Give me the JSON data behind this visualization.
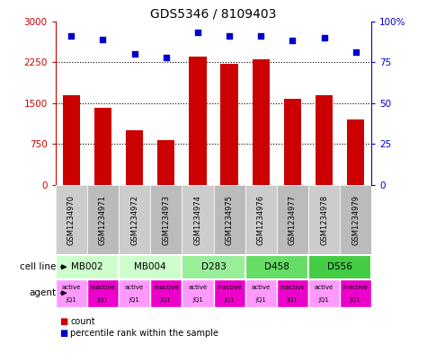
{
  "title": "GDS5346 / 8109403",
  "samples": [
    "GSM1234970",
    "GSM1234971",
    "GSM1234972",
    "GSM1234973",
    "GSM1234974",
    "GSM1234975",
    "GSM1234976",
    "GSM1234977",
    "GSM1234978",
    "GSM1234979"
  ],
  "counts": [
    1650,
    1420,
    1000,
    820,
    2350,
    2220,
    2300,
    1570,
    1650,
    1200
  ],
  "percentiles": [
    91,
    89,
    80,
    78,
    93,
    91,
    91,
    88,
    90,
    81
  ],
  "ylim_left": [
    0,
    3000
  ],
  "ylim_right": [
    0,
    100
  ],
  "yticks_left": [
    0,
    750,
    1500,
    2250,
    3000
  ],
  "yticks_right": [
    0,
    25,
    50,
    75,
    100
  ],
  "ytick_labels_left": [
    "0",
    "750",
    "1500",
    "2250",
    "3000"
  ],
  "ytick_labels_right": [
    "0",
    "25",
    "50",
    "75",
    "100%"
  ],
  "bar_color": "#cc0000",
  "dot_color": "#0000cc",
  "cell_line_groups": [
    {
      "label": "MB002",
      "start": 0,
      "end": 2,
      "color": "#ccffcc"
    },
    {
      "label": "MB004",
      "start": 2,
      "end": 4,
      "color": "#ccffcc"
    },
    {
      "label": "D283",
      "start": 4,
      "end": 6,
      "color": "#99ee99"
    },
    {
      "label": "D458",
      "start": 6,
      "end": 8,
      "color": "#66dd66"
    },
    {
      "label": "D556",
      "start": 8,
      "end": 10,
      "color": "#44cc44"
    }
  ],
  "agents": [
    "active\nJQ1",
    "inactive\nJQ1",
    "active\nJQ1",
    "inactive\nJQ1",
    "active\nJQ1",
    "inactive\nJQ1",
    "active\nJQ1",
    "inactive\nJQ1",
    "active\nJQ1",
    "inactive\nJQ1"
  ],
  "agent_active_color": "#ff99ff",
  "agent_inactive_color": "#ee00cc",
  "agent_label": "agent",
  "cell_line_label": "cell line",
  "legend_count_color": "#cc0000",
  "legend_dot_color": "#0000cc",
  "xticklabel_bg": "#cccccc",
  "grid_dotted_color": "#000000"
}
